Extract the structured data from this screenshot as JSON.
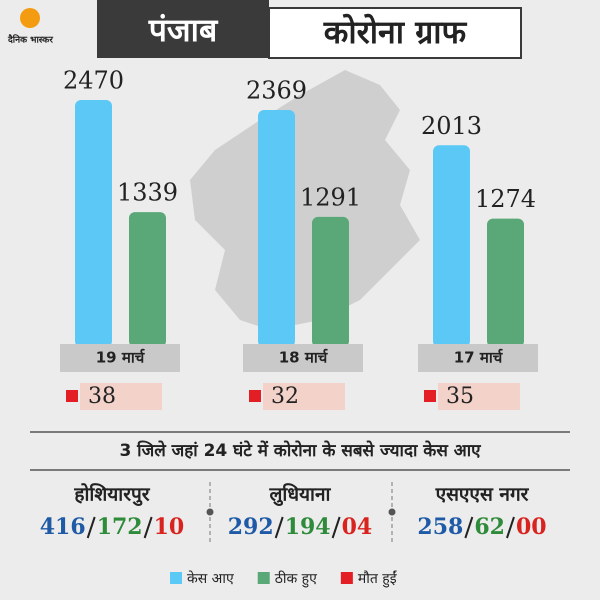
{
  "logo": "दैनिक भास्कर",
  "header": {
    "state": "पंजाब",
    "title": "कोरोना ग्राफ"
  },
  "chart_data": {
    "type": "bar",
    "categories": [
      "19 मार्च",
      "18 मार्च",
      "17 मार्च"
    ],
    "series": [
      {
        "name": "केस आए",
        "color": "#5bc8f5",
        "values": [
          2470,
          2369,
          2013
        ]
      },
      {
        "name": "ठीक हुए",
        "color": "#5aa777",
        "values": [
          1339,
          1291,
          1274
        ]
      },
      {
        "name": "मौत हुईं",
        "color": "#e31e24",
        "values": [
          38,
          32,
          35
        ]
      }
    ],
    "ylim": [
      0,
      2500
    ]
  },
  "districts": {
    "title": "3 जिले जहां 24 घंटे में कोरोना के सबसे ज्यादा केस आए",
    "items": [
      {
        "name": "होशियारपुर",
        "stats": [
          "416",
          "172",
          "10"
        ]
      },
      {
        "name": "लुधियाना",
        "stats": [
          "292",
          "194",
          "04"
        ]
      },
      {
        "name": "एसएएस नगर",
        "stats": [
          "258",
          "62",
          "00"
        ]
      }
    ]
  }
}
